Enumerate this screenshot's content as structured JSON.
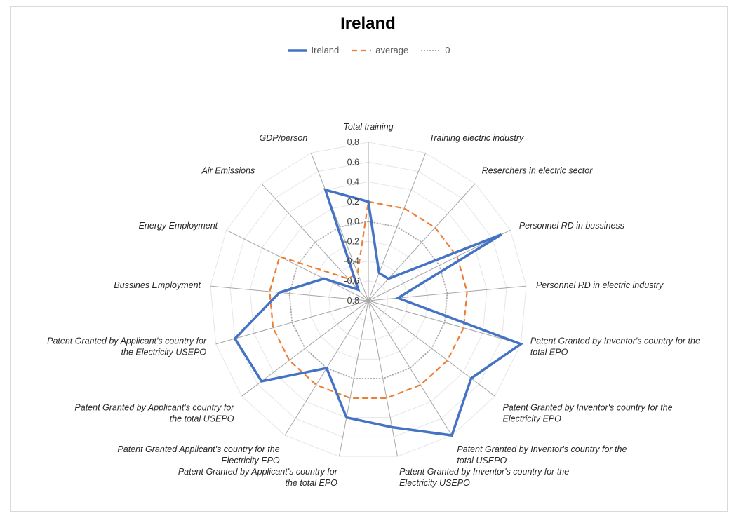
{
  "chart_data": {
    "type": "radar",
    "title": "Ireland",
    "categories": [
      "Total training",
      "Training electric industry",
      "Reserchers in electric sector",
      "Personnel RD in bussiness",
      "Personnel RD in electric industry",
      "Patent Granted by Inventor's country for the total EPO",
      "Patent Granted by Inventor's country for the Electricity EPO",
      "Patent Granted by Inventor's country for the total USEPO",
      "Patent Granted by Inventor's country for the Electricity USEPO",
      "Patent Granted by Applicant's country for the total EPO",
      "Patent Granted Applicant's country for the Electricity EPO",
      "Patent Granted by Applicant's country for the total USEPO",
      "Patent Granted by Applicant's country for the Electricity USEPO",
      "Bussines Employment",
      "Energy Employment",
      "Air Emissions",
      "GDP/person"
    ],
    "category_label_lines": [
      [
        "Total training"
      ],
      [
        "Training electric industry"
      ],
      [
        "Reserchers in electric sector"
      ],
      [
        "Personnel RD in bussiness"
      ],
      [
        "Personnel RD in electric industry"
      ],
      [
        "Patent Granted by Inventor's country for the",
        "total EPO"
      ],
      [
        "Patent Granted by Inventor's country for the",
        "Electricity EPO"
      ],
      [
        "Patent Granted by Inventor's country for the",
        "total USEPO"
      ],
      [
        "Patent Granted by Inventor's country for the",
        "Electricity USEPO"
      ],
      [
        "Patent Granted by Applicant's country for",
        "the total EPO"
      ],
      [
        "Patent Granted Applicant's country for the",
        "Electricity EPO"
      ],
      [
        "Patent Granted by Applicant's country for",
        "the total USEPO"
      ],
      [
        "Patent Granted by Applicant's country for",
        "the Electricity USEPO"
      ],
      [
        "Bussines Employment"
      ],
      [
        "Energy Employment"
      ],
      [
        "Air Emissions"
      ],
      [
        "GDP/person"
      ]
    ],
    "series": [
      {
        "name": "Ireland",
        "color": "#4472c4",
        "style": "solid",
        "values": [
          0.2,
          -0.5,
          -0.5,
          0.7,
          -0.5,
          0.8,
          0.5,
          0.8,
          0.5,
          0.4,
          0.0,
          0.55,
          0.6,
          0.1,
          -0.3,
          -0.65,
          0.4
        ]
      },
      {
        "name": "average",
        "color": "#ed7d31",
        "style": "dashed",
        "values": [
          0.2,
          0.2,
          0.2,
          0.2,
          0.2,
          0.2,
          0.2,
          0.2,
          0.2,
          0.2,
          0.2,
          0.2,
          0.2,
          0.2,
          0.2,
          -0.5,
          -0.5
        ]
      },
      {
        "name": "0",
        "color": "#a5a5a5",
        "style": "dotted",
        "values": [
          0,
          0,
          0,
          0,
          0,
          0,
          0,
          0,
          0,
          0,
          0,
          0,
          0,
          0,
          0,
          0,
          0
        ]
      }
    ],
    "ticks": [
      "0.8",
      "0.6",
      "0.4",
      "0.2",
      "0.0",
      "-0.2",
      "-0.4",
      "-0.6",
      "-0.8"
    ],
    "rlim": [
      -0.8,
      0.8
    ],
    "legend_position": "top-center"
  }
}
